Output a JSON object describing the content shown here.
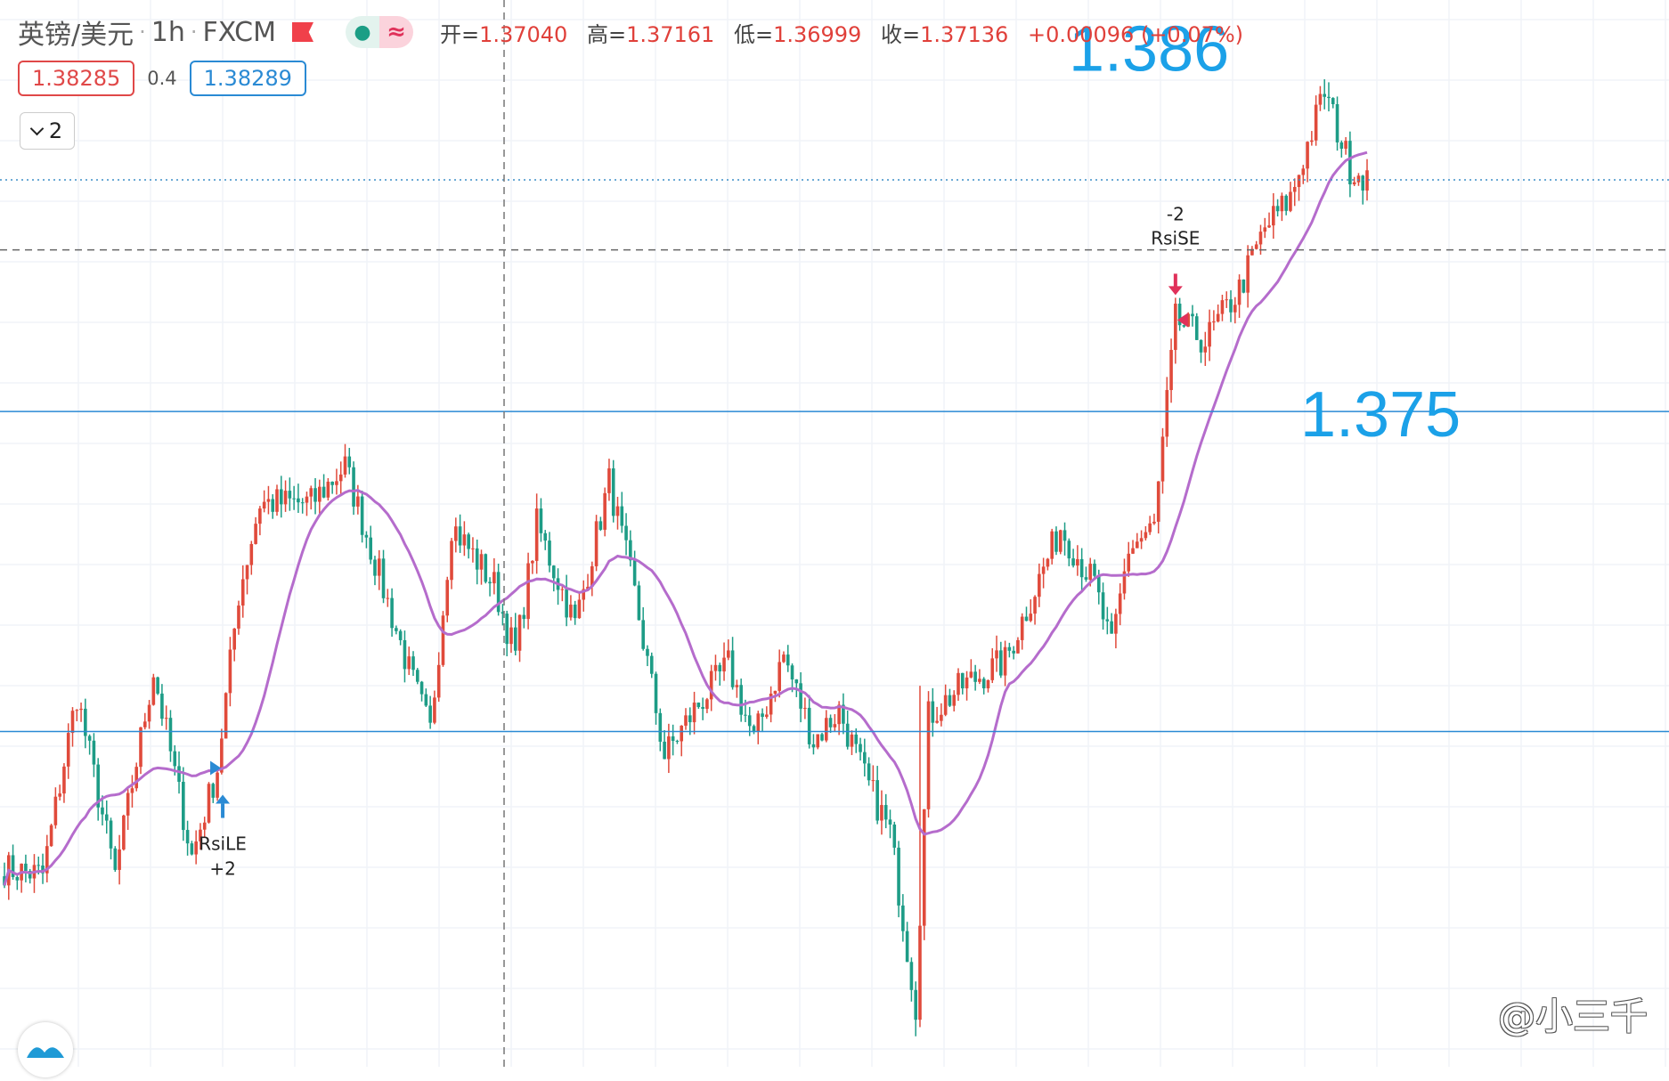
{
  "header": {
    "symbol": "英镑/美元",
    "interval": "1h",
    "source": "FXCM",
    "ohlc": {
      "open_label": "开=",
      "open": "1.37040",
      "high_label": "高=",
      "high": "1.37161",
      "low_label": "低=",
      "low": "1.36999",
      "close_label": "收=",
      "close": "1.37136",
      "change": "+0.00096 (+0.07%)"
    }
  },
  "prices": {
    "sell": "1.38285",
    "spread": "0.4",
    "buy": "1.38289"
  },
  "indicator_toggle": {
    "count": "2"
  },
  "watermark": "@小三千",
  "colors": {
    "up": "#e04a3b",
    "down": "#1d9c86",
    "ma": "#b56ccc",
    "level": "#2a8ad4",
    "annotation": "#1ba1e8"
  },
  "chart_data": {
    "type": "candlestick",
    "symbol": "英镑/美元",
    "timeframe": "1h",
    "ylim": [
      1.3535,
      1.3885
    ],
    "grid": true,
    "horizontal_levels": [
      {
        "value": 1.375,
        "label": "1.375",
        "style": "solid"
      },
      {
        "value": 1.3645,
        "label": "",
        "style": "solid"
      },
      {
        "value": 1.3826,
        "label": "",
        "style": "dotted"
      },
      {
        "value": 1.3803,
        "label": "",
        "style": "dashed"
      }
    ],
    "annotations": [
      {
        "text": "1.386",
        "value": 1.386
      },
      {
        "text": "1.375",
        "value": 1.375
      }
    ],
    "signals": [
      {
        "type": "long_entry",
        "name": "RsiLE",
        "qty": "+2",
        "bar": 50,
        "price": 1.3633
      },
      {
        "type": "short_entry",
        "name": "RsiSE",
        "qty": "-2",
        "bar": 275,
        "price": 1.378
      }
    ],
    "anchors": [
      [
        0,
        1.36
      ],
      [
        9,
        1.3598
      ],
      [
        17,
        1.3657
      ],
      [
        26,
        1.3598
      ],
      [
        35,
        1.3665
      ],
      [
        44,
        1.3604
      ],
      [
        50,
        1.3633
      ],
      [
        55,
        1.369
      ],
      [
        60,
        1.372
      ],
      [
        72,
        1.372
      ],
      [
        80,
        1.3732
      ],
      [
        95,
        1.3665
      ],
      [
        100,
        1.3645
      ],
      [
        105,
        1.3713
      ],
      [
        115,
        1.3693
      ],
      [
        120,
        1.367
      ],
      [
        125,
        1.3713
      ],
      [
        134,
        1.368
      ],
      [
        142,
        1.3727
      ],
      [
        148,
        1.369
      ],
      [
        155,
        1.3637
      ],
      [
        162,
        1.3652
      ],
      [
        170,
        1.3667
      ],
      [
        176,
        1.3642
      ],
      [
        183,
        1.367
      ],
      [
        190,
        1.3642
      ],
      [
        196,
        1.3652
      ],
      [
        202,
        1.363
      ],
      [
        208,
        1.3612
      ],
      [
        214,
        1.3555
      ],
      [
        217,
        1.365
      ],
      [
        225,
        1.366
      ],
      [
        235,
        1.3668
      ],
      [
        248,
        1.3712
      ],
      [
        256,
        1.3693
      ],
      [
        260,
        1.3672
      ],
      [
        264,
        1.3705
      ],
      [
        270,
        1.3712
      ],
      [
        275,
        1.378
      ],
      [
        282,
        1.3773
      ],
      [
        290,
        1.379
      ],
      [
        296,
        1.381
      ],
      [
        302,
        1.382
      ],
      [
        310,
        1.3855
      ],
      [
        316,
        1.383
      ],
      [
        320,
        1.3827
      ]
    ],
    "bar_count": 321,
    "ma_period": 20
  }
}
